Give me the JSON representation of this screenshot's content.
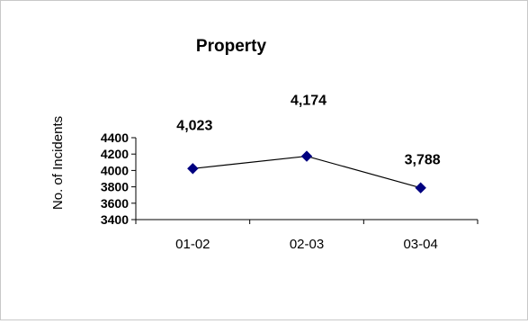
{
  "chart_data": {
    "type": "line",
    "title": "Property",
    "xlabel": "",
    "ylabel": "No. of Incidents",
    "categories": [
      "01-02",
      "02-03",
      "03-04"
    ],
    "values": [
      4023,
      4174,
      3788
    ],
    "data_labels": [
      "4,023",
      "4,174",
      "3,788"
    ],
    "ylim": [
      3400,
      4400
    ],
    "yticks": [
      3400,
      3600,
      3800,
      4000,
      4200,
      4400
    ],
    "ytick_labels": [
      "3400",
      "3600",
      "3800",
      "4000",
      "4200",
      "4400"
    ],
    "grid": false,
    "legend": "none",
    "colors": {
      "line": "#000000",
      "marker": "#000080"
    }
  }
}
